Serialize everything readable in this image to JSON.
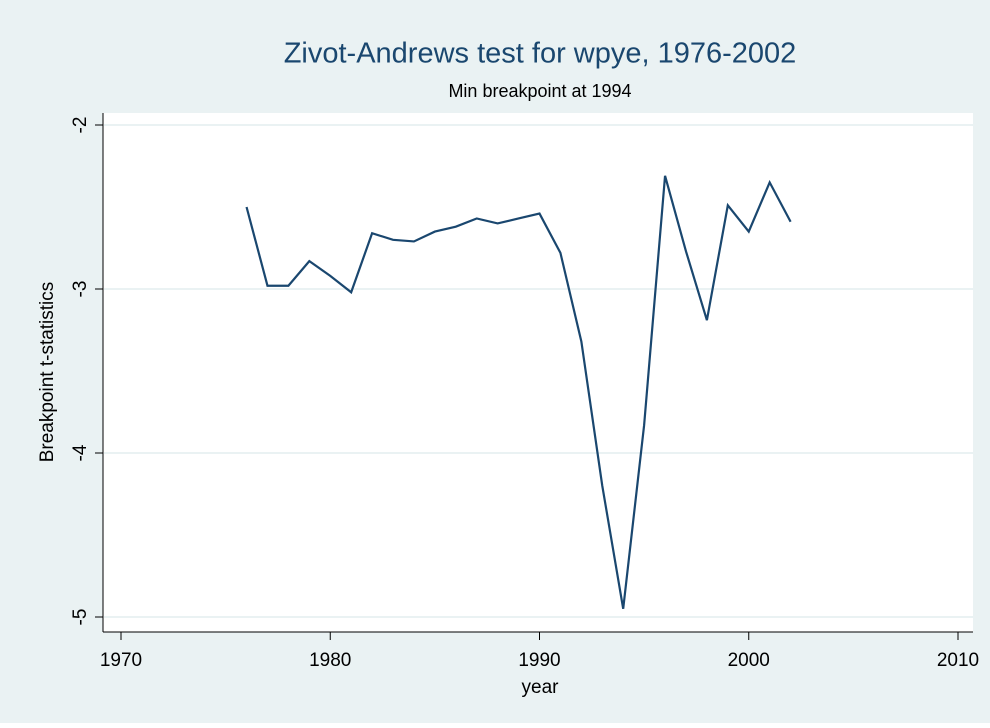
{
  "chart_data": {
    "type": "line",
    "title": "Zivot-Andrews test for wpye, 1976-2002",
    "subtitle": "Min breakpoint at 1994",
    "x_label": "year",
    "y_label": "Breakpoint t-statistics",
    "x": [
      1976,
      1977,
      1978,
      1979,
      1980,
      1981,
      1982,
      1983,
      1984,
      1985,
      1986,
      1987,
      1988,
      1989,
      1990,
      1991,
      1992,
      1993,
      1994,
      1995,
      1996,
      1997,
      1998,
      1999,
      2000,
      2001,
      2002
    ],
    "series": [
      {
        "color": "#1a476f",
        "values": [
          -2.5,
          -2.98,
          -2.98,
          -2.83,
          -2.92,
          -3.02,
          -2.66,
          -2.7,
          -2.71,
          -2.65,
          -2.62,
          -2.57,
          -2.6,
          -2.57,
          -2.54,
          -2.78,
          -3.32,
          -4.2,
          -4.95,
          -3.83,
          -2.31,
          -2.77,
          -3.19,
          -2.49,
          -2.65,
          -2.35,
          -2.59
        ]
      }
    ],
    "xlim": [
      1970,
      2010
    ],
    "xticks": [
      1970,
      1980,
      1990,
      2000,
      2010
    ],
    "ylim": [
      -5,
      -2
    ],
    "yticks": [
      -5,
      -4,
      -3,
      -2
    ],
    "grid": true
  }
}
